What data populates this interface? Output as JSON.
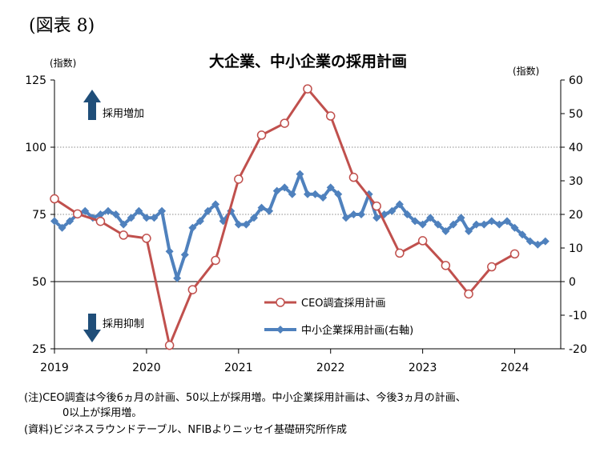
{
  "figure_label": "(図表 8)",
  "notes": [
    "(注)CEO調査は今後6ヵ月の計画、50以上が採用増。中小企業採用計画は、今後3ヵ月の計画、",
    "0以上が採用増。",
    "(資料)ビジネスラウンドテーブル、NFIBよりニッセイ基礎研究所作成"
  ],
  "chart_data": {
    "type": "line",
    "title": "大企業、中小企業の採用計画",
    "ylabel": "(指数)",
    "ylabel_right": "(指数)",
    "ylim": [
      25,
      125
    ],
    "ylim_right": [
      -20,
      60
    ],
    "yticks": [
      25,
      50,
      75,
      100,
      125
    ],
    "yticks_right": [
      -20,
      -10,
      0,
      10,
      20,
      30,
      40,
      50,
      60
    ],
    "xlim": [
      2019.0,
      2024.5
    ],
    "xticks": [
      "2019",
      "2020",
      "2021",
      "2022",
      "2023",
      "2024"
    ],
    "grid": "horizontal",
    "legend_position": "bottom-right",
    "annotations": {
      "up": "採用増加",
      "down": "採用抑制"
    },
    "colors": {
      "ceo": "#c0504d",
      "nfib": "#4f81bd",
      "grid": "#666666"
    },
    "series": [
      {
        "name": "CEO調査採用計画",
        "axis": "left",
        "marker": "circle",
        "points": [
          [
            2019.0,
            80.8
          ],
          [
            2019.25,
            75.2
          ],
          [
            2019.5,
            72.4
          ],
          [
            2019.75,
            67.3
          ],
          [
            2020.0,
            66.1
          ],
          [
            2020.25,
            26.3
          ],
          [
            2020.5,
            47.0
          ],
          [
            2020.75,
            57.9
          ],
          [
            2021.0,
            88.1
          ],
          [
            2021.25,
            104.5
          ],
          [
            2021.5,
            108.9
          ],
          [
            2021.75,
            121.7
          ],
          [
            2022.0,
            111.6
          ],
          [
            2022.25,
            88.8
          ],
          [
            2022.5,
            78.1
          ],
          [
            2022.75,
            60.6
          ],
          [
            2023.0,
            65.2
          ],
          [
            2023.25,
            56.0
          ],
          [
            2023.5,
            45.4
          ],
          [
            2023.75,
            55.5
          ],
          [
            2024.0,
            60.3
          ]
        ]
      },
      {
        "name": "中小企業採用計画(右軸)",
        "axis": "right",
        "marker": "diamond",
        "points": [
          [
            2019.0,
            18
          ],
          [
            2019.083,
            16
          ],
          [
            2019.167,
            18
          ],
          [
            2019.25,
            20
          ],
          [
            2019.333,
            21
          ],
          [
            2019.417,
            19
          ],
          [
            2019.5,
            20
          ],
          [
            2019.583,
            21
          ],
          [
            2019.667,
            20
          ],
          [
            2019.75,
            17
          ],
          [
            2019.833,
            19
          ],
          [
            2019.917,
            21
          ],
          [
            2020.0,
            19
          ],
          [
            2020.083,
            19
          ],
          [
            2020.167,
            21
          ],
          [
            2020.25,
            9
          ],
          [
            2020.333,
            1
          ],
          [
            2020.417,
            8
          ],
          [
            2020.5,
            16
          ],
          [
            2020.583,
            18
          ],
          [
            2020.667,
            21
          ],
          [
            2020.75,
            23
          ],
          [
            2020.833,
            18
          ],
          [
            2020.917,
            21
          ],
          [
            2021.0,
            17
          ],
          [
            2021.083,
            17
          ],
          [
            2021.167,
            19
          ],
          [
            2021.25,
            22
          ],
          [
            2021.333,
            21
          ],
          [
            2021.417,
            27
          ],
          [
            2021.5,
            28
          ],
          [
            2021.583,
            26
          ],
          [
            2021.667,
            32
          ],
          [
            2021.75,
            26
          ],
          [
            2021.833,
            26
          ],
          [
            2021.917,
            25
          ],
          [
            2022.0,
            28
          ],
          [
            2022.083,
            26
          ],
          [
            2022.167,
            19
          ],
          [
            2022.25,
            20
          ],
          [
            2022.333,
            20
          ],
          [
            2022.417,
            26
          ],
          [
            2022.5,
            19
          ],
          [
            2022.583,
            20
          ],
          [
            2022.667,
            21
          ],
          [
            2022.75,
            23
          ],
          [
            2022.833,
            20
          ],
          [
            2022.917,
            18
          ],
          [
            2023.0,
            17
          ],
          [
            2023.083,
            19
          ],
          [
            2023.167,
            17
          ],
          [
            2023.25,
            15
          ],
          [
            2023.333,
            17
          ],
          [
            2023.417,
            19
          ],
          [
            2023.5,
            15
          ],
          [
            2023.583,
            17
          ],
          [
            2023.667,
            17
          ],
          [
            2023.75,
            18
          ],
          [
            2023.833,
            17
          ],
          [
            2023.917,
            18
          ],
          [
            2024.0,
            16
          ],
          [
            2024.083,
            14
          ],
          [
            2024.167,
            12
          ],
          [
            2024.25,
            11
          ],
          [
            2024.333,
            12
          ]
        ]
      }
    ]
  }
}
